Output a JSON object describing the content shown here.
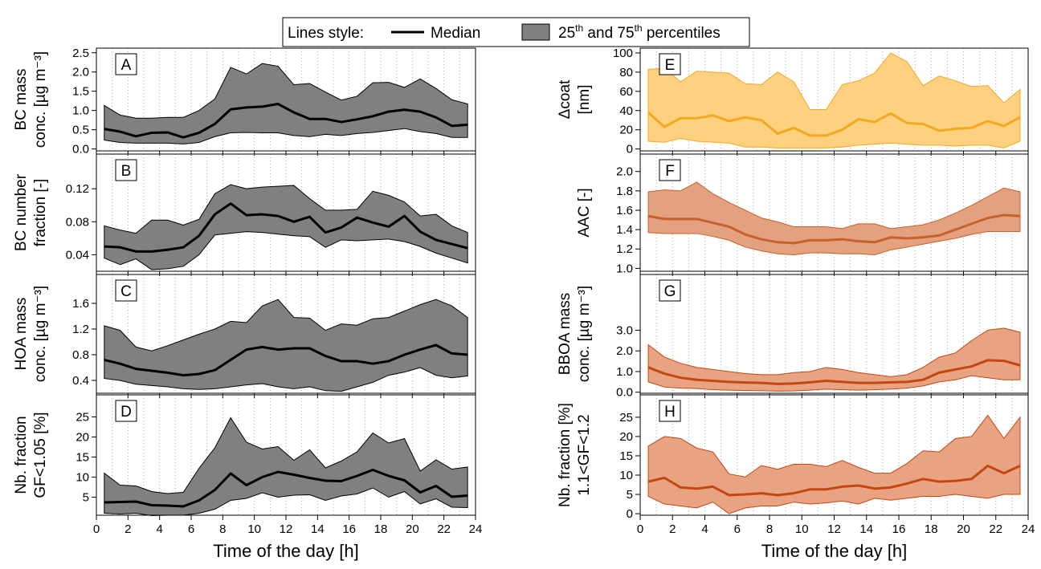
{
  "legend": {
    "title": "Lines style:",
    "median": "Median",
    "band": [
      "25",
      "th",
      " and 75",
      "th",
      " percentiles"
    ]
  },
  "chart_data": [
    {
      "type": "line",
      "panel": "A",
      "ylabel": [
        "BC mass",
        "conc. [µg m⁻³]"
      ],
      "band_color": "#808080",
      "line_color": "#000000",
      "x": [
        0.5,
        1.5,
        2.5,
        3.5,
        4.5,
        5.5,
        6.5,
        7.5,
        8.5,
        9.5,
        10.5,
        11.5,
        12.5,
        13.5,
        14.5,
        15.5,
        16.5,
        17.5,
        18.5,
        19.5,
        20.5,
        21.5,
        22.5,
        23.5
      ],
      "median": [
        0.52,
        0.45,
        0.33,
        0.42,
        0.43,
        0.3,
        0.42,
        0.65,
        1.03,
        1.08,
        1.1,
        1.17,
        0.95,
        0.78,
        0.78,
        0.7,
        0.77,
        0.85,
        0.97,
        1.02,
        0.97,
        0.82,
        0.6,
        0.63
      ],
      "p75": [
        1.13,
        0.88,
        0.8,
        0.8,
        0.82,
        0.82,
        1.0,
        1.3,
        2.12,
        1.95,
        2.22,
        2.15,
        1.67,
        1.7,
        1.48,
        1.27,
        1.37,
        1.72,
        1.73,
        1.6,
        1.82,
        1.57,
        1.28,
        1.17
      ],
      "p25": [
        0.23,
        0.17,
        0.15,
        0.15,
        0.15,
        0.13,
        0.17,
        0.32,
        0.42,
        0.43,
        0.42,
        0.42,
        0.35,
        0.32,
        0.38,
        0.35,
        0.4,
        0.43,
        0.48,
        0.53,
        0.45,
        0.4,
        0.3,
        0.3
      ],
      "xlim": [
        0,
        24
      ],
      "xticks": [
        0,
        2,
        4,
        6,
        8,
        10,
        12,
        14,
        16,
        18,
        20,
        22,
        24
      ],
      "xgrid": [
        1,
        3,
        5,
        7,
        9,
        11,
        13,
        15,
        17,
        19,
        21,
        23
      ],
      "ylim": [
        -0.05,
        2.62
      ],
      "yticks": [
        {
          "value": 0,
          "label": "0.0"
        },
        {
          "value": 0.5,
          "label": "0.5"
        },
        {
          "value": 1,
          "label": "1.0"
        },
        {
          "value": 1.5,
          "label": "1.5"
        },
        {
          "value": 2,
          "label": "2.0"
        },
        {
          "value": 2.5,
          "label": "2.5"
        }
      ]
    },
    {
      "type": "line",
      "panel": "B",
      "ylabel": [
        "BC number",
        "fraction [-]"
      ],
      "band_color": "#808080",
      "line_color": "#000000",
      "x": [
        0.5,
        1.5,
        2.5,
        3.5,
        4.5,
        5.5,
        6.5,
        7.5,
        8.5,
        9.5,
        10.5,
        11.5,
        12.5,
        13.5,
        14.5,
        15.5,
        16.5,
        17.5,
        18.5,
        19.5,
        20.5,
        21.5,
        22.5,
        23.5
      ],
      "median": [
        0.05,
        0.049,
        0.044,
        0.044,
        0.046,
        0.049,
        0.063,
        0.089,
        0.102,
        0.088,
        0.089,
        0.087,
        0.08,
        0.086,
        0.067,
        0.073,
        0.085,
        0.079,
        0.074,
        0.087,
        0.068,
        0.058,
        0.053,
        0.048
      ],
      "p75": [
        0.075,
        0.07,
        0.066,
        0.082,
        0.082,
        0.076,
        0.083,
        0.114,
        0.125,
        0.12,
        0.122,
        0.123,
        0.124,
        0.108,
        0.094,
        0.094,
        0.095,
        0.117,
        0.112,
        0.104,
        0.087,
        0.089,
        0.075,
        0.067
      ],
      "p25": [
        0.036,
        0.028,
        0.035,
        0.022,
        0.023,
        0.026,
        0.04,
        0.064,
        0.066,
        0.068,
        0.067,
        0.065,
        0.063,
        0.062,
        0.049,
        0.058,
        0.057,
        0.058,
        0.059,
        0.056,
        0.05,
        0.042,
        0.036,
        0.03
      ],
      "xlim": [
        0,
        24
      ],
      "xticks": [
        0,
        2,
        4,
        6,
        8,
        10,
        12,
        14,
        16,
        18,
        20,
        22,
        24
      ],
      "xgrid": [
        1,
        3,
        5,
        7,
        9,
        11,
        13,
        15,
        17,
        19,
        21,
        23
      ],
      "ylim": [
        0.02,
        0.162
      ],
      "yticks": [
        0.04,
        0.08,
        0.12
      ]
    },
    {
      "type": "line",
      "panel": "C",
      "ylabel": [
        "HOA mass",
        "conc. [µg m⁻³]"
      ],
      "band_color": "#808080",
      "line_color": "#000000",
      "x": [
        0.5,
        1.5,
        2.5,
        3.5,
        4.5,
        5.5,
        6.5,
        7.5,
        8.5,
        9.5,
        10.5,
        11.5,
        12.5,
        13.5,
        14.5,
        15.5,
        16.5,
        17.5,
        18.5,
        19.5,
        20.5,
        21.5,
        22.5,
        23.5
      ],
      "median": [
        0.72,
        0.66,
        0.58,
        0.55,
        0.52,
        0.48,
        0.5,
        0.56,
        0.72,
        0.88,
        0.92,
        0.88,
        0.9,
        0.9,
        0.78,
        0.7,
        0.7,
        0.66,
        0.7,
        0.8,
        0.88,
        0.95,
        0.82,
        0.8
      ],
      "p75": [
        1.25,
        1.18,
        0.92,
        0.86,
        0.94,
        1.03,
        1.12,
        1.2,
        1.32,
        1.3,
        1.56,
        1.66,
        1.38,
        1.37,
        1.18,
        1.28,
        1.26,
        1.36,
        1.38,
        1.48,
        1.58,
        1.66,
        1.56,
        1.38
      ],
      "p25": [
        0.43,
        0.4,
        0.34,
        0.32,
        0.3,
        0.27,
        0.26,
        0.27,
        0.3,
        0.33,
        0.35,
        0.3,
        0.27,
        0.3,
        0.24,
        0.23,
        0.3,
        0.37,
        0.48,
        0.53,
        0.6,
        0.48,
        0.44,
        0.47
      ],
      "xlim": [
        0,
        24
      ],
      "xticks": [
        0,
        2,
        4,
        6,
        8,
        10,
        12,
        14,
        16,
        18,
        20,
        22,
        24
      ],
      "xgrid": [
        1,
        3,
        5,
        7,
        9,
        11,
        13,
        15,
        17,
        19,
        21,
        23
      ],
      "ylim": [
        0.2,
        2.05
      ],
      "yticks": [
        0.4,
        0.8,
        1.2,
        1.6
      ]
    },
    {
      "type": "line",
      "panel": "D",
      "ylabel": [
        "Nb. fraction",
        "GF<1.05 [%]"
      ],
      "xlabel": "Time of the day [h]",
      "band_color": "#808080",
      "line_color": "#000000",
      "x": [
        0.5,
        1.5,
        2.5,
        3.5,
        4.5,
        5.5,
        6.5,
        7.5,
        8.5,
        9.5,
        10.5,
        11.5,
        12.5,
        13.5,
        14.5,
        15.5,
        16.5,
        17.5,
        18.5,
        19.5,
        20.5,
        21.5,
        22.5,
        23.5
      ],
      "median": [
        3.7,
        3.8,
        3.9,
        3,
        2.9,
        2.7,
        4.2,
        6.8,
        10.9,
        8,
        10,
        11.3,
        10.6,
        9.8,
        9.1,
        9,
        10.3,
        11.8,
        10.3,
        9.2,
        6.2,
        7.8,
        5.1,
        5.4
      ],
      "p75": [
        11,
        8,
        7.8,
        6.4,
        5.9,
        6.2,
        12.2,
        17.3,
        24.8,
        18.7,
        17,
        17.6,
        14.2,
        16.8,
        12.3,
        14,
        16.3,
        21,
        18.5,
        19.6,
        11.5,
        14.3,
        12,
        12.5
      ],
      "p25": [
        1,
        0.8,
        1,
        0.4,
        0.5,
        0.5,
        1,
        2,
        4.2,
        4.7,
        6.1,
        5,
        5.5,
        5.6,
        4.2,
        5.3,
        5.8,
        7.3,
        5,
        6.4,
        3.3,
        4.6,
        2.5,
        2.4
      ],
      "xlim": [
        0,
        24
      ],
      "xticks": [
        0,
        2,
        4,
        6,
        8,
        10,
        12,
        14,
        16,
        18,
        20,
        22,
        24
      ],
      "xgrid": [
        1,
        3,
        5,
        7,
        9,
        11,
        13,
        15,
        17,
        19,
        21,
        23
      ],
      "ylim": [
        0.5,
        30.5
      ],
      "yticks": [
        5,
        10,
        15,
        20,
        25
      ]
    },
    {
      "type": "line",
      "panel": "E",
      "ylabel": [
        "Δcoat",
        "[nm]"
      ],
      "band_color": "#fdd17f",
      "line_color": "#f4a81f",
      "x": [
        0.5,
        1.5,
        2.5,
        3.5,
        4.5,
        5.5,
        6.5,
        7.5,
        8.5,
        9.5,
        10.5,
        11.5,
        12.5,
        13.5,
        14.5,
        15.5,
        16.5,
        17.5,
        18.5,
        19.5,
        20.5,
        21.5,
        22.5,
        23.5
      ],
      "median": [
        38,
        23,
        32,
        32,
        35,
        29,
        33,
        30,
        16,
        22,
        14,
        14,
        20,
        31,
        28,
        37,
        27,
        26,
        19,
        21,
        22,
        29,
        24,
        33
      ],
      "p75": [
        83,
        84,
        70,
        81,
        80,
        79,
        68,
        67,
        80,
        70,
        41,
        41,
        67,
        71,
        79,
        100,
        91,
        66,
        76,
        71,
        65,
        66,
        48,
        62
      ],
      "p25": [
        8,
        7,
        11,
        8,
        7,
        6,
        2,
        2,
        1,
        1,
        1,
        1,
        2,
        4,
        5,
        6,
        5,
        4,
        4,
        3,
        4,
        4,
        1,
        8
      ],
      "xlim": [
        0,
        24
      ],
      "xticks": [
        0,
        2,
        4,
        6,
        8,
        10,
        12,
        14,
        16,
        18,
        20,
        22,
        24
      ],
      "xgrid": [
        1,
        3,
        5,
        7,
        9,
        11,
        13,
        15,
        17,
        19,
        21,
        23
      ],
      "ylim": [
        -2,
        105
      ],
      "yticks": [
        0,
        20,
        40,
        60,
        80,
        100
      ]
    },
    {
      "type": "line",
      "panel": "F",
      "ylabel": [
        "AAC [-]"
      ],
      "band_color": "#e3a17f",
      "line_color": "#c8602a",
      "x": [
        0.5,
        1.5,
        2.5,
        3.5,
        4.5,
        5.5,
        6.5,
        7.5,
        8.5,
        9.5,
        10.5,
        11.5,
        12.5,
        13.5,
        14.5,
        15.5,
        16.5,
        17.5,
        18.5,
        19.5,
        20.5,
        21.5,
        22.5,
        23.5
      ],
      "median": [
        1.54,
        1.51,
        1.51,
        1.51,
        1.47,
        1.43,
        1.35,
        1.3,
        1.27,
        1.26,
        1.29,
        1.29,
        1.3,
        1.28,
        1.27,
        1.32,
        1.31,
        1.32,
        1.34,
        1.4,
        1.46,
        1.52,
        1.55,
        1.54
      ],
      "p75": [
        1.79,
        1.81,
        1.8,
        1.89,
        1.77,
        1.68,
        1.6,
        1.52,
        1.48,
        1.43,
        1.43,
        1.43,
        1.41,
        1.46,
        1.46,
        1.41,
        1.43,
        1.45,
        1.5,
        1.57,
        1.65,
        1.74,
        1.83,
        1.79
      ],
      "p25": [
        1.37,
        1.36,
        1.36,
        1.36,
        1.33,
        1.29,
        1.22,
        1.18,
        1.15,
        1.14,
        1.16,
        1.16,
        1.15,
        1.15,
        1.14,
        1.19,
        1.22,
        1.25,
        1.28,
        1.31,
        1.35,
        1.38,
        1.38,
        1.38
      ],
      "xlim": [
        0,
        24
      ],
      "xticks": [
        0,
        2,
        4,
        6,
        8,
        10,
        12,
        14,
        16,
        18,
        20,
        22,
        24
      ],
      "xgrid": [
        1,
        3,
        5,
        7,
        9,
        11,
        13,
        15,
        17,
        19,
        21,
        23
      ],
      "ylim": [
        0.97,
        2.18
      ],
      "yticks": [
        {
          "value": 1,
          "label": "1.0"
        },
        {
          "value": 1.2,
          "label": "1.2"
        },
        {
          "value": 1.4,
          "label": "1.4"
        },
        {
          "value": 1.6,
          "label": "1.6"
        },
        {
          "value": 1.8,
          "label": "1.8"
        },
        {
          "value": 2,
          "label": "2.0"
        }
      ]
    },
    {
      "type": "line",
      "panel": "G",
      "ylabel": [
        "BBOA mass",
        "conc. [µg m⁻³]"
      ],
      "band_color": "#e8a382",
      "line_color": "#c4470f",
      "x": [
        0.5,
        1.5,
        2.5,
        3.5,
        4.5,
        5.5,
        6.5,
        7.5,
        8.5,
        9.5,
        10.5,
        11.5,
        12.5,
        13.5,
        14.5,
        15.5,
        16.5,
        17.5,
        18.5,
        19.5,
        20.5,
        21.5,
        22.5,
        23.5
      ],
      "median": [
        1.2,
        0.9,
        0.7,
        0.6,
        0.55,
        0.5,
        0.47,
        0.45,
        0.4,
        0.42,
        0.48,
        0.55,
        0.5,
        0.45,
        0.45,
        0.48,
        0.5,
        0.6,
        0.95,
        1.1,
        1.25,
        1.55,
        1.52,
        1.3
      ],
      "p75": [
        2.3,
        1.7,
        1.4,
        1.2,
        1.1,
        1.0,
        0.9,
        0.85,
        0.85,
        0.95,
        1.0,
        1.2,
        1.1,
        0.95,
        0.85,
        0.75,
        0.85,
        1.2,
        1.7,
        1.9,
        2.5,
        3.0,
        3.1,
        2.9
      ],
      "p25": [
        0.5,
        0.25,
        0.2,
        0.18,
        0.12,
        0.1,
        0.08,
        0.07,
        0.05,
        0.06,
        0.1,
        0.15,
        0.12,
        0.1,
        0.12,
        0.15,
        0.2,
        0.3,
        0.5,
        0.6,
        0.8,
        0.7,
        0.6,
        0.6
      ],
      "xlim": [
        0,
        24
      ],
      "xticks": [
        0,
        2,
        4,
        6,
        8,
        10,
        12,
        14,
        16,
        18,
        20,
        22,
        24
      ],
      "xgrid": [
        1,
        3,
        5,
        7,
        9,
        11,
        13,
        15,
        17,
        19,
        21,
        23
      ],
      "ylim": [
        -0.05,
        5.7
      ],
      "yticks": [
        {
          "value": 0,
          "label": "0.0"
        },
        {
          "value": 1,
          "label": "1.0"
        },
        {
          "value": 2,
          "label": "2.0"
        },
        {
          "value": 3,
          "label": "3.0"
        }
      ]
    },
    {
      "type": "line",
      "panel": "H",
      "ylabel": [
        "Nb. fraction [%]",
        "1.1<GF<1.2"
      ],
      "xlabel": "Time of the day [h]",
      "band_color": "#e8a382",
      "line_color": "#c4470f",
      "x": [
        0.5,
        1.5,
        2.5,
        3.5,
        4.5,
        5.5,
        6.5,
        7.5,
        8.5,
        9.5,
        10.5,
        11.5,
        12.5,
        13.5,
        14.5,
        15.5,
        16.5,
        17.5,
        18.5,
        19.5,
        20.5,
        21.5,
        22.5,
        23.5
      ],
      "median": [
        8.3,
        9.3,
        6.8,
        6.5,
        7,
        4.8,
        5,
        5.3,
        4.8,
        5.3,
        6.3,
        6.3,
        7,
        7.3,
        6.5,
        6.8,
        7.8,
        9,
        8.3,
        8.5,
        9,
        12.4,
        10.5,
        12.4
      ],
      "p75": [
        17.5,
        20,
        19.5,
        17,
        16,
        10.3,
        9.5,
        12.5,
        11.5,
        12.8,
        12.8,
        12.2,
        13.8,
        12,
        10.5,
        10.5,
        13,
        16.3,
        16,
        19.5,
        20,
        25.5,
        19.5,
        25
      ],
      "p25": [
        4.5,
        2.5,
        2,
        1.5,
        3,
        0,
        1.5,
        2,
        2,
        3,
        2.5,
        2.8,
        3.3,
        2.5,
        4,
        3.5,
        4,
        4.5,
        4.5,
        5,
        4.5,
        4,
        5,
        5
      ],
      "xlim": [
        0,
        24
      ],
      "xticks": [
        0,
        2,
        4,
        6,
        8,
        10,
        12,
        14,
        16,
        18,
        20,
        22,
        24
      ],
      "xgrid": [
        1,
        3,
        5,
        7,
        9,
        11,
        13,
        15,
        17,
        19,
        21,
        23
      ],
      "ylim": [
        -0.4,
        30.8
      ],
      "yticks": [
        0,
        5,
        10,
        15,
        20,
        25
      ]
    }
  ]
}
